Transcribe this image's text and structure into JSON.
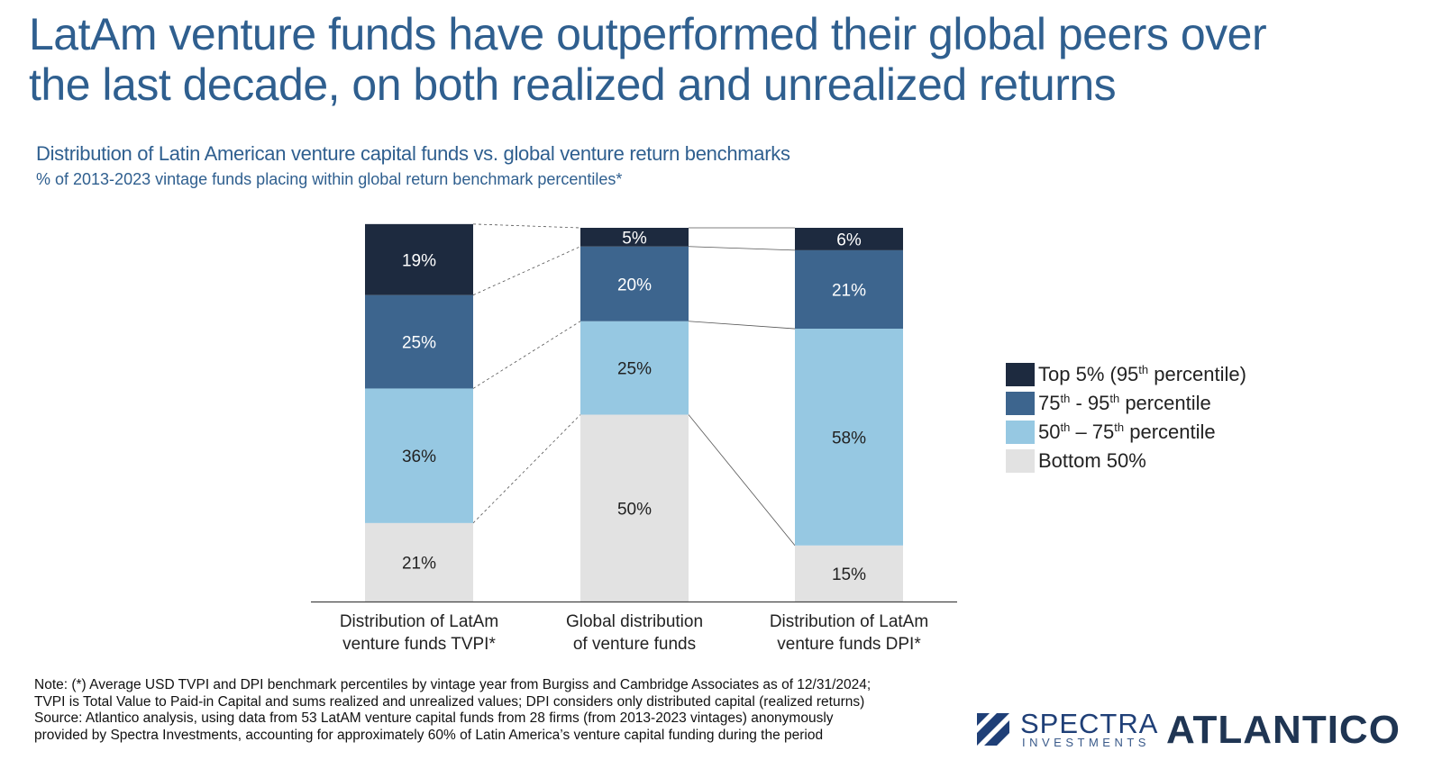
{
  "header": {
    "title_line1": "LatAm venture funds have outperformed their global peers over",
    "title_line2": "the last decade, on both realized and unrealized returns",
    "subtitle": "Distribution of Latin American venture capital funds vs. global venture return benchmarks",
    "subsubtitle": "% of 2013-2023 vintage funds placing within global return benchmark percentiles*"
  },
  "chart_data": {
    "type": "bar",
    "stacked": true,
    "ylim": [
      0,
      100
    ],
    "grid": false,
    "legend_position": "right",
    "categories": [
      [
        "Distribution of LatAm",
        "venture funds TVPI*"
      ],
      [
        "Global distribution",
        "of venture funds"
      ],
      [
        "Distribution of LatAm",
        "venture funds DPI*"
      ]
    ],
    "series": [
      {
        "name": "Bottom 50%",
        "color": "#e2e2e2",
        "text_color": "#222222",
        "values": [
          21,
          50,
          15
        ],
        "labels": [
          "21%",
          "50%",
          "15%"
        ]
      },
      {
        "name": "50th – 75th percentile",
        "color": "#96c8e2",
        "text_color": "#222222",
        "values": [
          36,
          25,
          58
        ],
        "labels": [
          "36%",
          "25%",
          "58%"
        ]
      },
      {
        "name": "75th - 95th percentile",
        "color": "#3d658e",
        "text_color": "#ffffff",
        "values": [
          25,
          20,
          21
        ],
        "labels": [
          "25%",
          "20%",
          "21%"
        ]
      },
      {
        "name": "Top 5% (95th percentile)",
        "color": "#1d2a3f",
        "text_color": "#ffffff",
        "values": [
          19,
          5,
          6
        ],
        "labels": [
          "19%",
          "5%",
          "6%"
        ]
      }
    ]
  },
  "legend": {
    "items": [
      {
        "pre": "Top 5% (95",
        "sup1": "th",
        "mid": " percentile)",
        "sup2": "",
        "post": "",
        "color": "#1d2a3f"
      },
      {
        "pre": "75",
        "sup1": "th",
        "mid": " - 95",
        "sup2": "th",
        "post": " percentile",
        "color": "#3d658e"
      },
      {
        "pre": "50",
        "sup1": "th",
        "mid": " – 75",
        "sup2": "th",
        "post": " percentile",
        "color": "#96c8e2"
      },
      {
        "pre": "Bottom 50%",
        "sup1": "",
        "mid": "",
        "sup2": "",
        "post": "",
        "color": "#e2e2e2"
      }
    ]
  },
  "notes": {
    "line1": "Note: (*) Average USD TVPI and DPI benchmark percentiles by vintage year from Burgiss and Cambridge Associates as of 12/31/2024;",
    "line2": "TVPI is Total Value to Paid-in Capital and sums realized and unrealized values; DPI considers only distributed capital (realized returns)",
    "line3": "Source: Atlantico analysis, using data from 53 LatAM venture capital funds from 28 firms (from 2013-2023 vintages) anonymously",
    "line4": "provided by Spectra Investments, accounting for approximately 60% of Latin America’s venture capital funding during the period"
  },
  "logos": {
    "spectra_word": "SPECTRA",
    "spectra_sub": "INVESTMENTS",
    "atlantico": "ATLANTICO"
  }
}
